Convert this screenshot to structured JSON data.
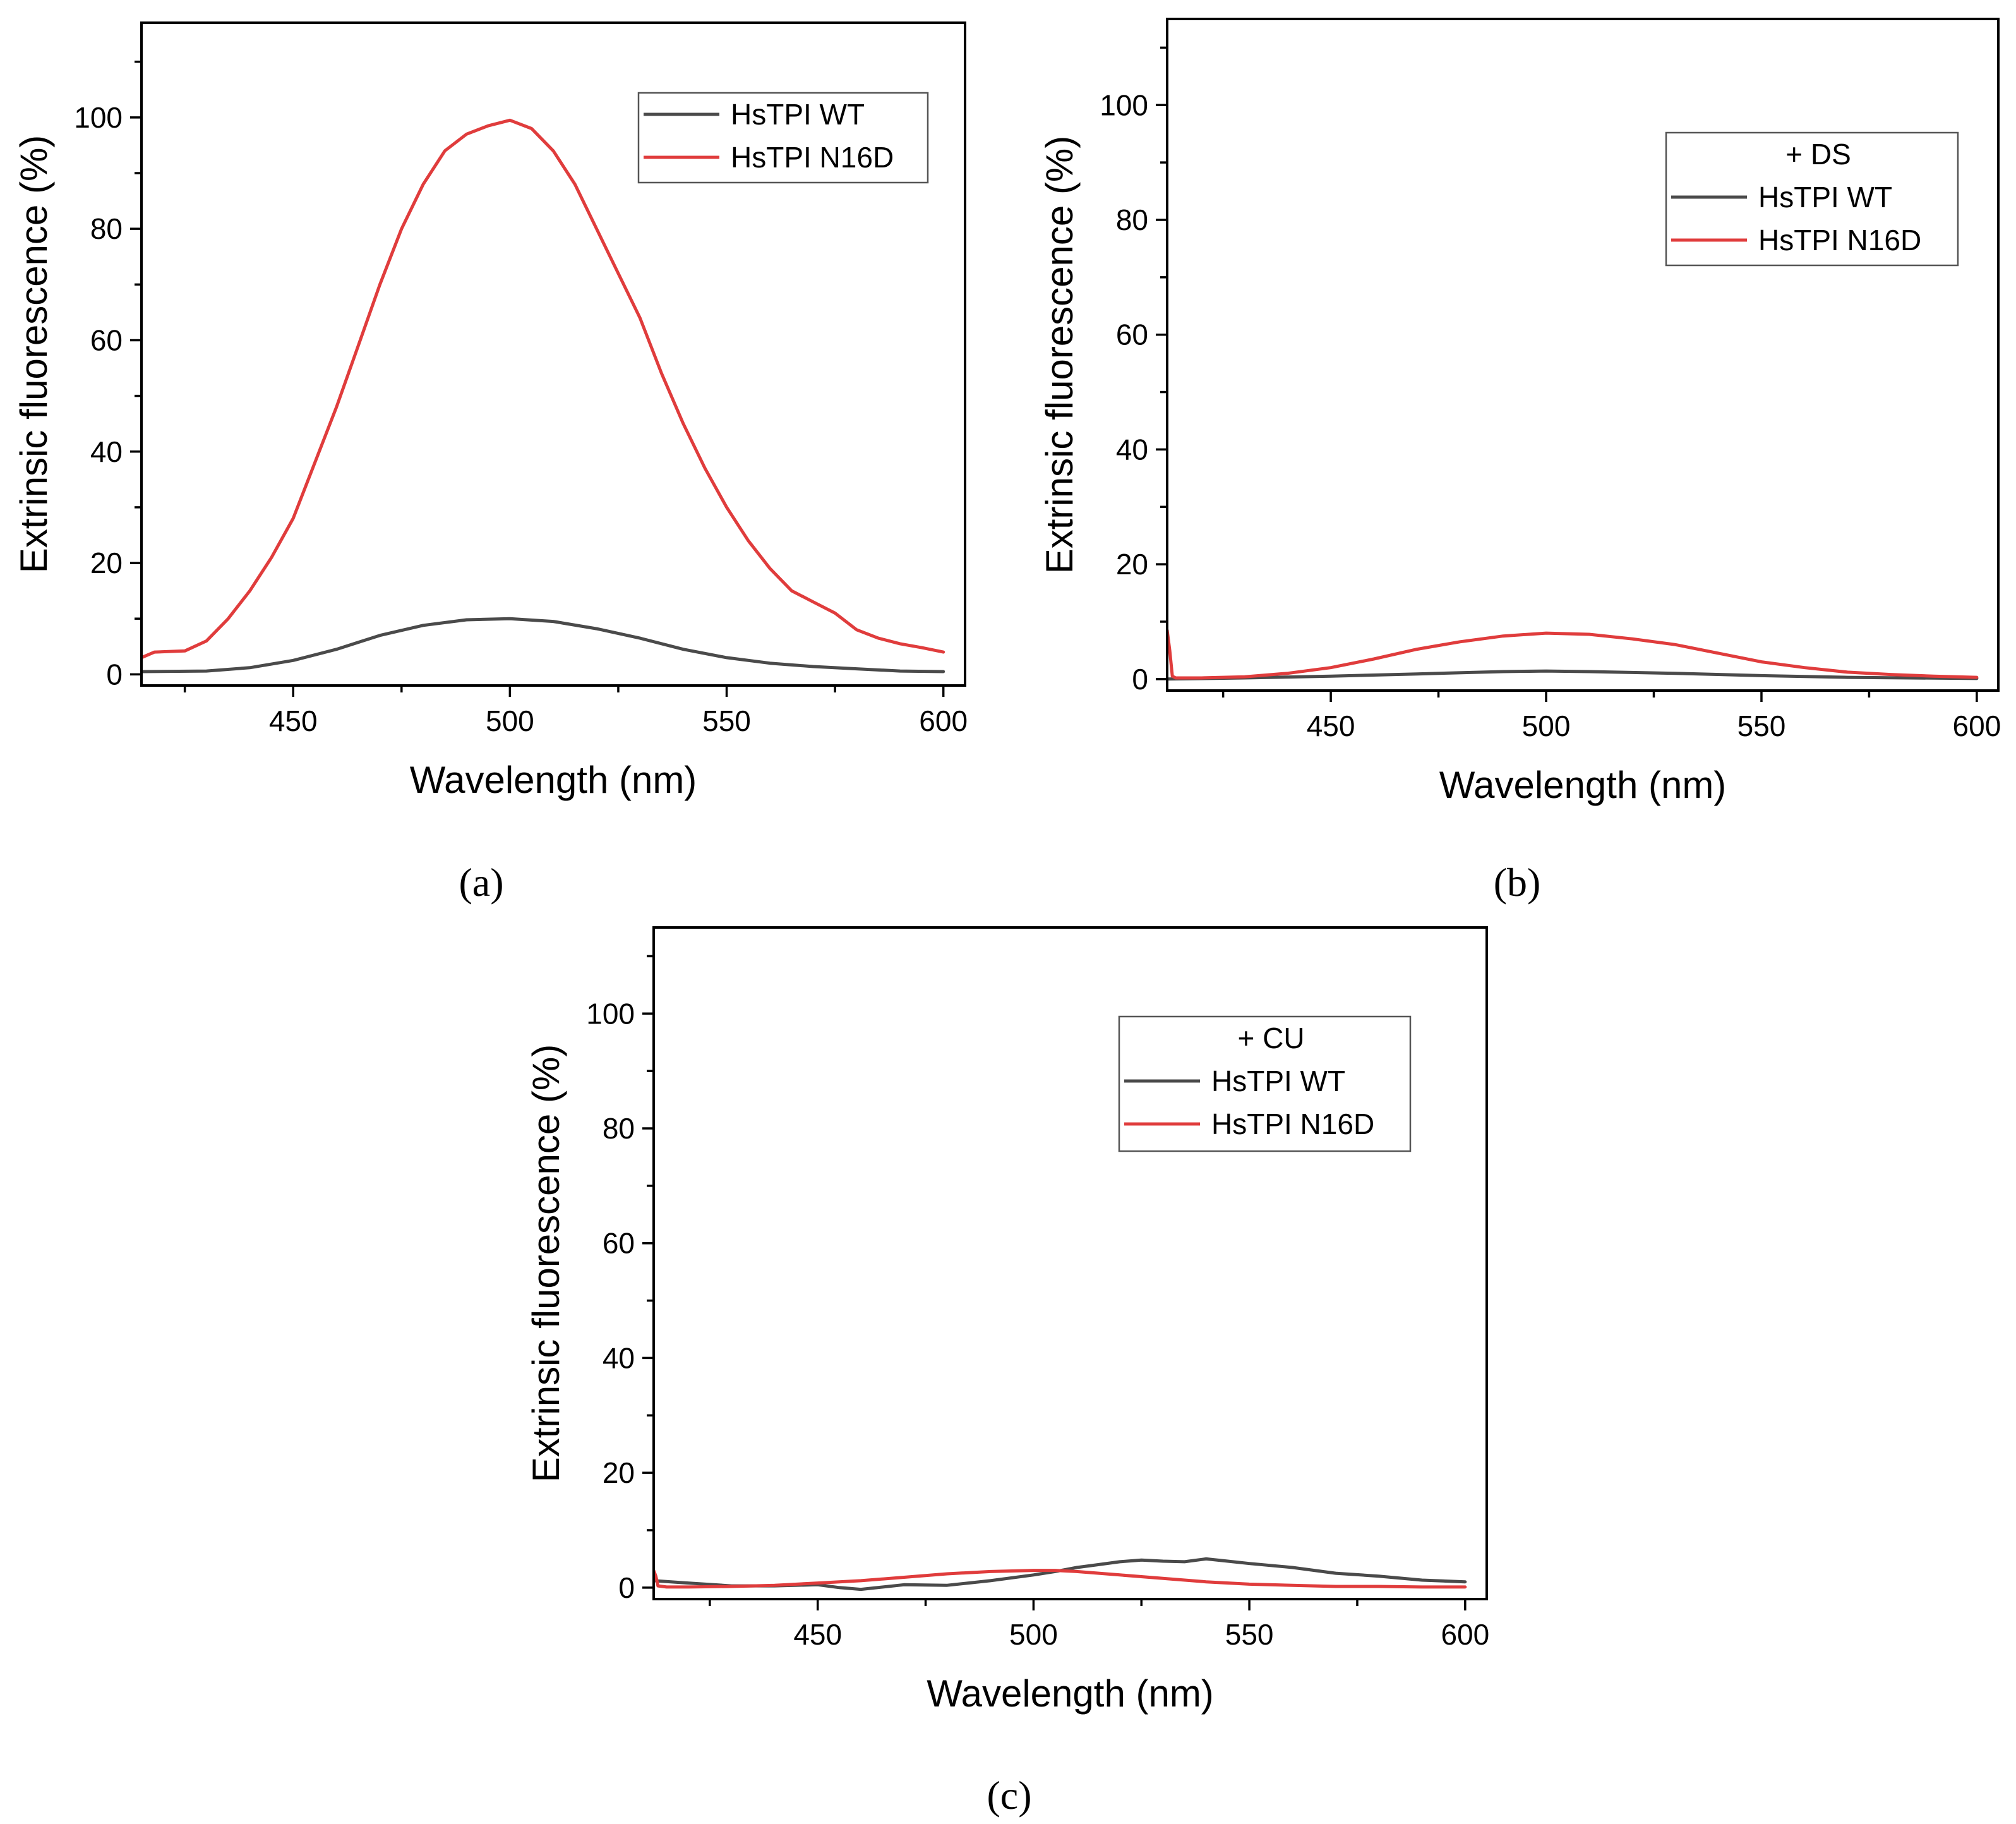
{
  "chart_data": [
    {
      "panel_label": "(a)",
      "type": "line",
      "title": "",
      "xlabel": "Wavelength (nm)",
      "ylabel": "Extrinsic fluorescence (%)",
      "xlim": [
        415,
        605
      ],
      "ylim": [
        -2,
        117
      ],
      "xticks": [
        450,
        500,
        550,
        600
      ],
      "yticks": [
        0,
        20,
        40,
        60,
        80,
        100
      ],
      "grid": false,
      "legend_position": "top-right",
      "legend_title": "",
      "series": [
        {
          "name": "HsTPI WT",
          "color": "#4a4a4a",
          "x": [
            415,
            430,
            440,
            450,
            460,
            470,
            480,
            490,
            500,
            510,
            520,
            530,
            540,
            550,
            560,
            570,
            580,
            590,
            600
          ],
          "y": [
            0.5,
            0.6,
            1.2,
            2.5,
            4.5,
            7,
            8.8,
            9.8,
            10,
            9.5,
            8.2,
            6.5,
            4.5,
            3,
            2,
            1.4,
            1,
            0.6,
            0.5
          ]
        },
        {
          "name": "HsTPI N16D",
          "color": "#e03c3c",
          "x": [
            415,
            418,
            425,
            430,
            435,
            440,
            445,
            450,
            455,
            460,
            465,
            470,
            475,
            480,
            485,
            490,
            495,
            500,
            505,
            510,
            515,
            520,
            525,
            530,
            535,
            540,
            545,
            550,
            555,
            560,
            565,
            570,
            575,
            580,
            585,
            590,
            595,
            600
          ],
          "y": [
            3,
            4,
            4.2,
            6,
            10,
            15,
            21,
            28,
            38,
            48,
            59,
            70,
            80,
            88,
            94,
            97,
            98.5,
            99.5,
            98,
            94,
            88,
            80,
            72,
            64,
            54,
            45,
            37,
            30,
            24,
            19,
            15,
            13,
            11,
            8,
            6.5,
            5.5,
            4.8,
            4
          ]
        }
      ]
    },
    {
      "panel_label": "(b)",
      "type": "line",
      "title": "",
      "xlabel": "Wavelength (nm)",
      "ylabel": "Extrinsic fluorescence (%)",
      "xlim": [
        412,
        605
      ],
      "ylim": [
        -2,
        115
      ],
      "xticks": [
        450,
        500,
        550,
        600
      ],
      "yticks": [
        0,
        20,
        40,
        60,
        80,
        100
      ],
      "grid": false,
      "legend_position": "top-right",
      "legend_title": "+ DS",
      "series": [
        {
          "name": "HsTPI WT",
          "color": "#4a4a4a",
          "x": [
            412,
            430,
            450,
            470,
            490,
            500,
            510,
            530,
            550,
            570,
            600
          ],
          "y": [
            0,
            0.2,
            0.5,
            0.9,
            1.3,
            1.4,
            1.3,
            1,
            0.6,
            0.3,
            0.1
          ]
        },
        {
          "name": "HsTPI N16D",
          "color": "#e03c3c",
          "x": [
            412,
            412.6,
            413.2,
            414,
            420,
            430,
            440,
            450,
            460,
            470,
            480,
            490,
            500,
            510,
            520,
            530,
            540,
            550,
            560,
            570,
            580,
            590,
            600
          ],
          "y": [
            8.5,
            5,
            0.5,
            0.2,
            0.2,
            0.4,
            1,
            2,
            3.5,
            5.2,
            6.5,
            7.5,
            8,
            7.8,
            7,
            6,
            4.5,
            3,
            2,
            1.2,
            0.8,
            0.5,
            0.3
          ]
        }
      ]
    },
    {
      "panel_label": "(c)",
      "type": "line",
      "title": "",
      "xlabel": "Wavelength (nm)",
      "ylabel": "Extrinsic fluorescence (%)",
      "xlim": [
        412,
        605
      ],
      "ylim": [
        -2,
        115
      ],
      "xticks": [
        450,
        500,
        550,
        600
      ],
      "yticks": [
        0,
        20,
        40,
        60,
        80,
        100
      ],
      "grid": false,
      "legend_position": "top-right",
      "legend_title": "+ CU",
      "series": [
        {
          "name": "HsTPI WT",
          "color": "#4a4a4a",
          "x": [
            412,
            420,
            430,
            440,
            450,
            455,
            460,
            470,
            480,
            490,
            500,
            505,
            510,
            515,
            520,
            525,
            530,
            535,
            540,
            545,
            550,
            560,
            570,
            580,
            590,
            600
          ],
          "y": [
            1.2,
            0.8,
            0.3,
            0.3,
            0.5,
            0,
            -0.3,
            0.5,
            0.4,
            1.2,
            2.2,
            2.8,
            3.5,
            4,
            4.5,
            4.8,
            4.6,
            4.5,
            5,
            4.6,
            4.2,
            3.5,
            2.5,
            2,
            1.3,
            1
          ]
        },
        {
          "name": "HsTPI N16D",
          "color": "#e03c3c",
          "x": [
            412,
            412.5,
            413,
            415,
            420,
            430,
            440,
            450,
            460,
            470,
            480,
            490,
            500,
            505,
            510,
            520,
            530,
            540,
            550,
            560,
            570,
            580,
            590,
            600
          ],
          "y": [
            3,
            2,
            0.3,
            0.1,
            0.1,
            0.2,
            0.4,
            0.8,
            1.2,
            1.8,
            2.4,
            2.8,
            3,
            3,
            2.8,
            2.2,
            1.6,
            1,
            0.6,
            0.4,
            0.2,
            0.2,
            0.1,
            0.1
          ]
        }
      ]
    }
  ]
}
